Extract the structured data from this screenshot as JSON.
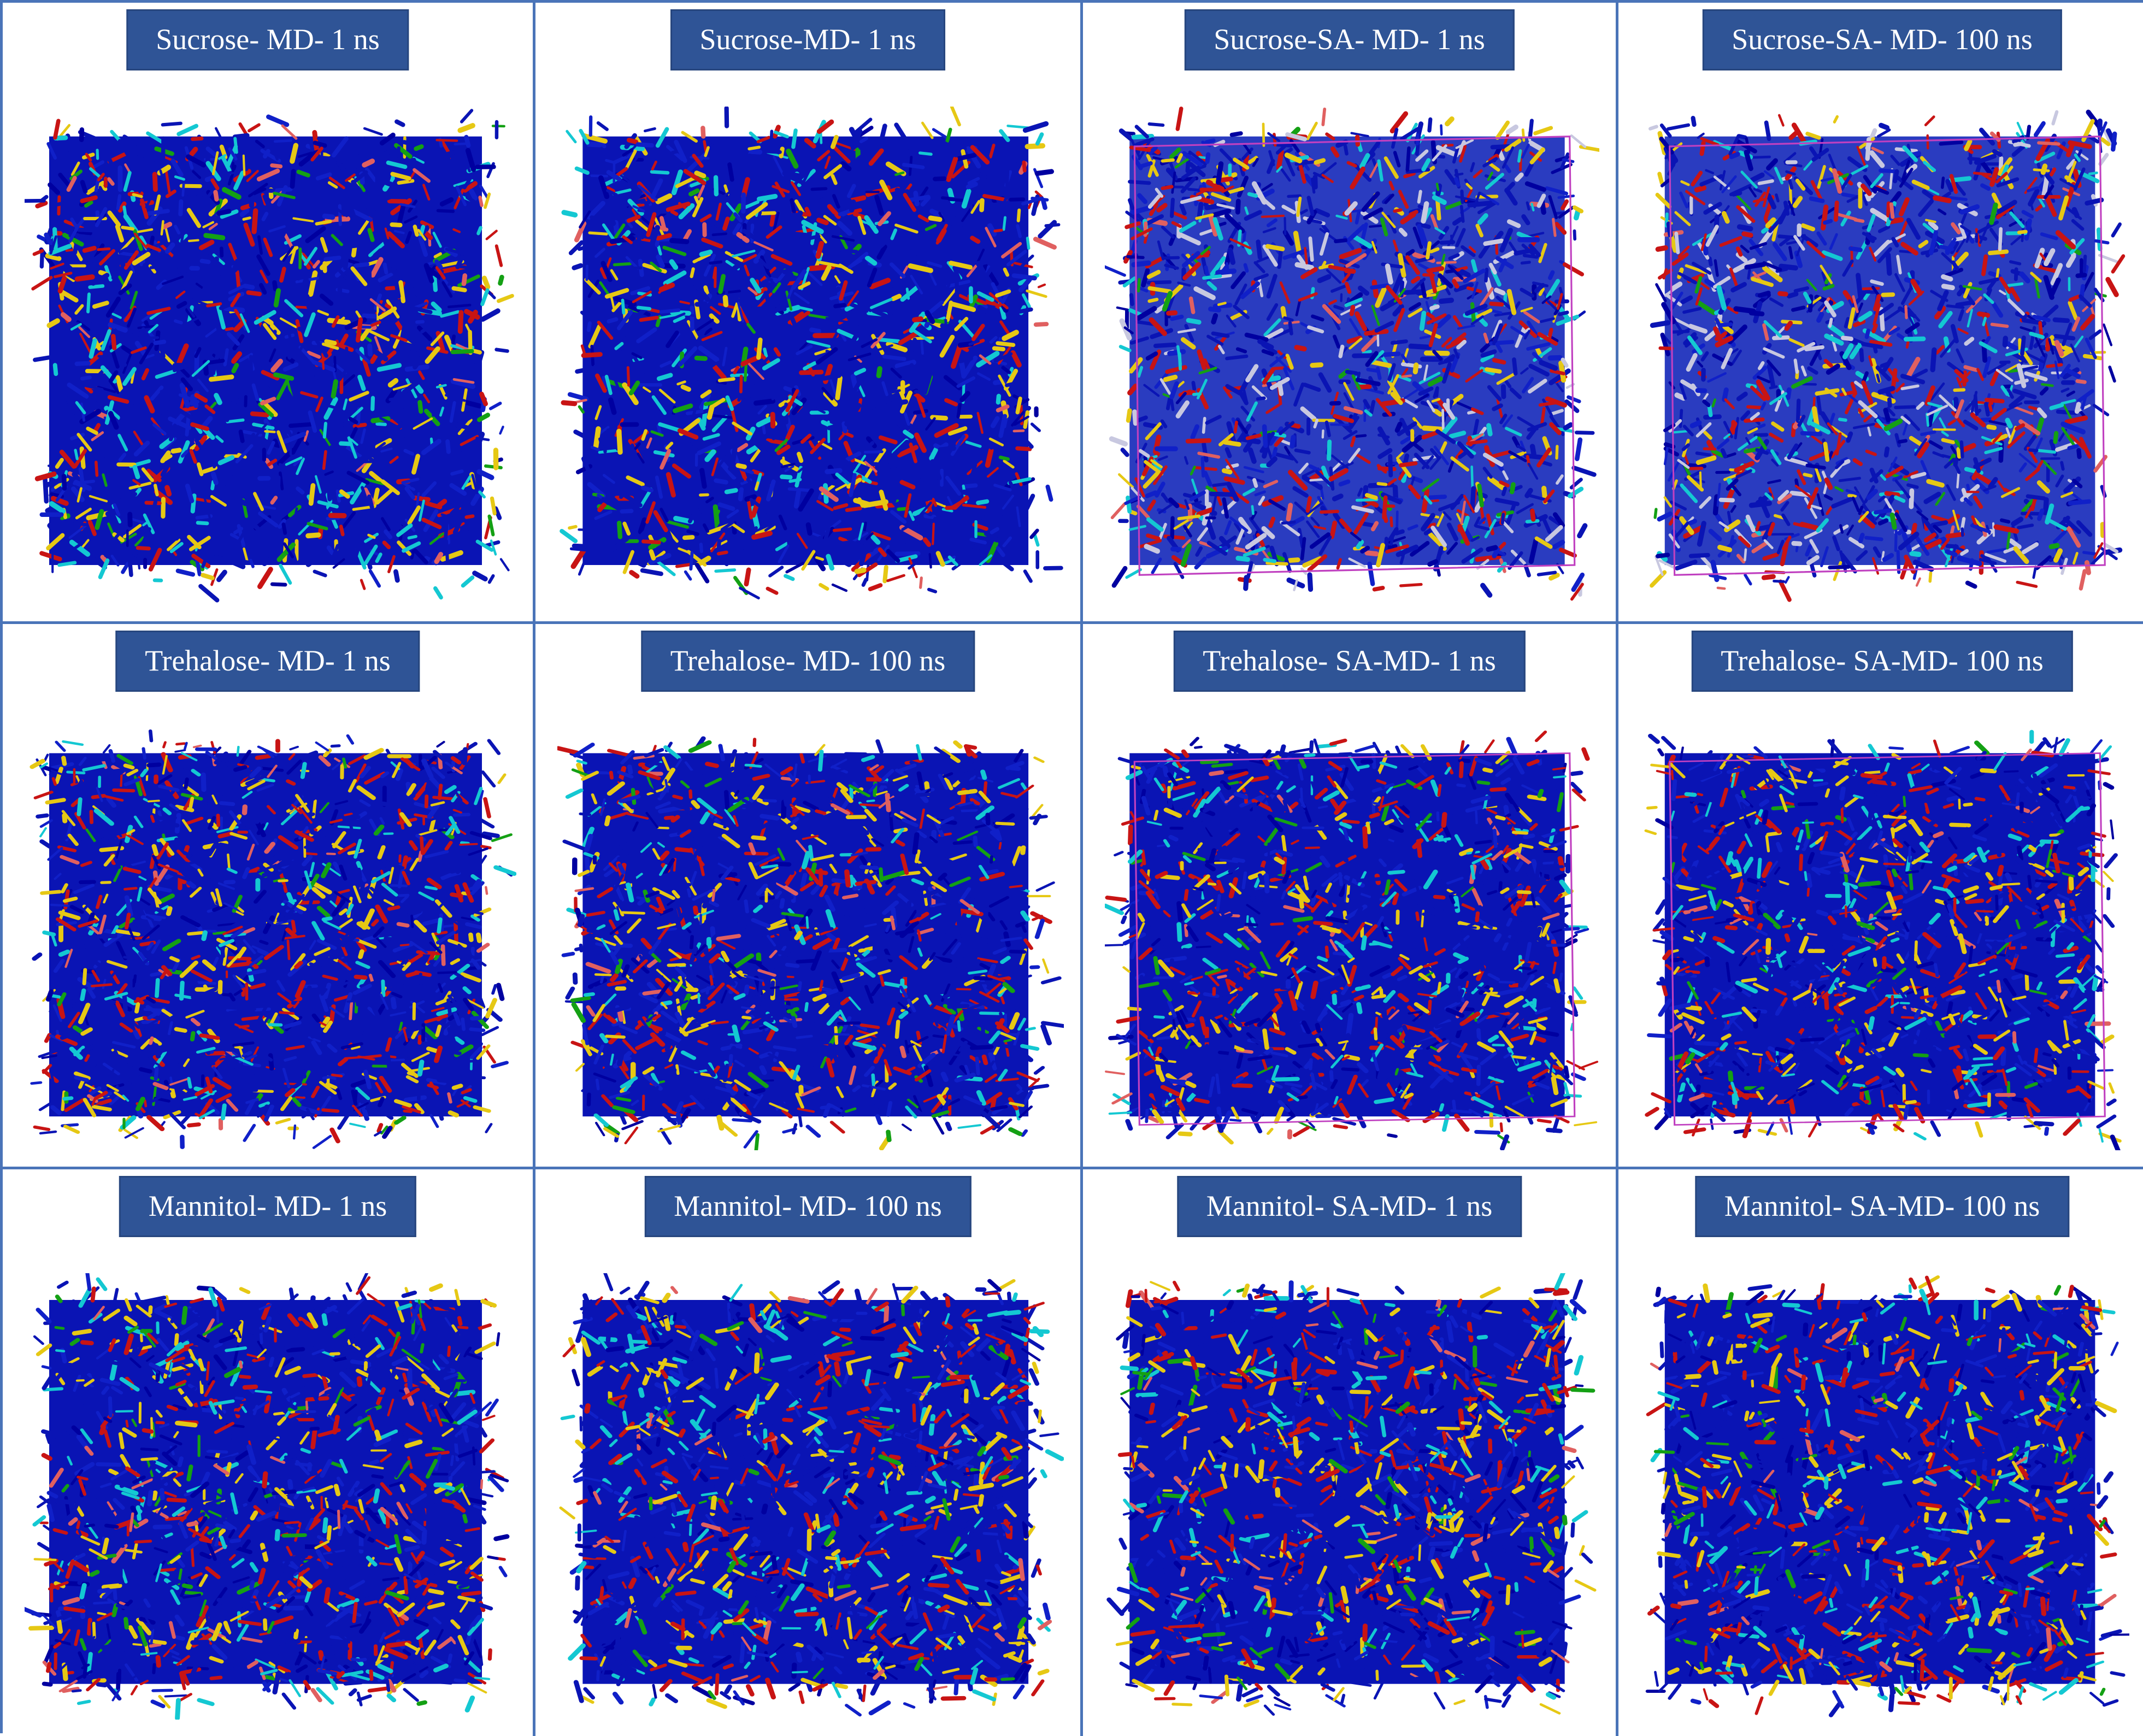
{
  "panels": [
    {
      "label": "Sucrose- MD- 1 ns",
      "box": false,
      "light_grey": false
    },
    {
      "label": "Sucrose-MD- 1 ns",
      "box": false,
      "light_grey": false
    },
    {
      "label": "Sucrose-SA- MD- 1 ns",
      "box": true,
      "light_grey": true
    },
    {
      "label": "Sucrose-SA- MD- 100 ns",
      "box": true,
      "light_grey": true
    },
    {
      "label": "Trehalose- MD- 1 ns",
      "box": false,
      "light_grey": false
    },
    {
      "label": "Trehalose- MD- 100 ns",
      "box": false,
      "light_grey": false
    },
    {
      "label": "Trehalose- SA-MD- 1 ns",
      "box": true,
      "light_grey": false
    },
    {
      "label": "Trehalose- SA-MD- 100 ns",
      "box": true,
      "light_grey": false
    },
    {
      "label": "Mannitol- MD- 1 ns",
      "box": false,
      "light_grey": false
    },
    {
      "label": "Mannitol- MD- 100 ns",
      "box": false,
      "light_grey": false
    },
    {
      "label": "Mannitol- SA-MD- 1 ns",
      "box": false,
      "light_grey": false
    },
    {
      "label": "Mannitol- SA-MD- 100 ns",
      "box": false,
      "light_grey": false
    }
  ],
  "colors": {
    "border": "#4a74b8",
    "label_bg": "#2f5496",
    "label_text": "#ffffff",
    "sim_box": "#c040c0",
    "molecule_palette": [
      "#0a14b4",
      "#1020c8",
      "#0000a0",
      "#c81414",
      "#e6c814",
      "#14c8d2",
      "#14a014",
      "#e06060",
      "#c8c8e0"
    ]
  }
}
